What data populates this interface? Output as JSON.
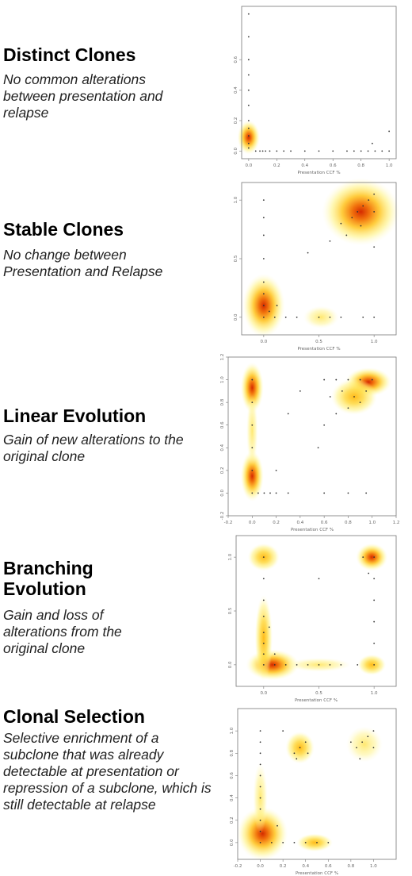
{
  "panels": [
    {
      "title": "Distinct Clones",
      "description": "No common alterations between presentation and relapse"
    },
    {
      "title": "Stable Clones",
      "description": "No change between Presentation and Relapse"
    },
    {
      "title": "Linear Evolution",
      "description": "Gain of new alterations to the original clone"
    },
    {
      "title": "Branching Evolution",
      "description": "Gain and loss of alterations from the original clone"
    },
    {
      "title": "Clonal Selection",
      "description": "Selective enrichment of a subclone that was already detectable at presentation or repression of a subclone, which is still detectable at relapse"
    }
  ],
  "chart_data": [
    {
      "type": "scatter",
      "xlabel": "Presentation CCF %",
      "ylabel": "",
      "xlim": [
        -0.05,
        1.05
      ],
      "ylim": [
        -0.05,
        0.95
      ],
      "xticks": [
        "0.0",
        "0.2",
        "0.4",
        "0.6",
        "0.8",
        "1.0"
      ],
      "xtick_values": [
        0.0,
        0.2,
        0.4,
        0.6,
        0.8,
        1.0
      ],
      "yticks": [
        "0.0",
        "0.2",
        "0.4",
        "0.6"
      ],
      "ytick_values": [
        0.0,
        0.2,
        0.4,
        0.6
      ],
      "density": [
        {
          "x": 0.0,
          "y": 0.09,
          "rx": 0.05,
          "ry": 0.07,
          "intensity": 1.0
        }
      ],
      "points": [
        [
          0.0,
          0.02
        ],
        [
          0.0,
          0.05
        ],
        [
          0.0,
          0.1
        ],
        [
          0.0,
          0.15
        ],
        [
          0.0,
          0.2
        ],
        [
          0.0,
          0.3
        ],
        [
          0.0,
          0.4
        ],
        [
          0.0,
          0.5
        ],
        [
          0.0,
          0.6
        ],
        [
          0.0,
          0.75
        ],
        [
          0.0,
          0.9
        ],
        [
          0.05,
          0.0
        ],
        [
          0.08,
          0.0
        ],
        [
          0.1,
          0.0
        ],
        [
          0.12,
          0.0
        ],
        [
          0.15,
          0.0
        ],
        [
          0.2,
          0.0
        ],
        [
          0.25,
          0.0
        ],
        [
          0.3,
          0.0
        ],
        [
          0.4,
          0.0
        ],
        [
          0.5,
          0.0
        ],
        [
          0.6,
          0.0
        ],
        [
          0.7,
          0.0
        ],
        [
          0.75,
          0.0
        ],
        [
          0.8,
          0.0
        ],
        [
          0.85,
          0.0
        ],
        [
          0.9,
          0.0
        ],
        [
          0.95,
          0.0
        ],
        [
          1.0,
          0.0
        ],
        [
          0.88,
          0.05
        ],
        [
          1.0,
          0.13
        ]
      ]
    },
    {
      "type": "scatter",
      "xlabel": "Presentation CCF %",
      "ylabel": "",
      "xlim": [
        -0.2,
        1.2
      ],
      "ylim": [
        -0.15,
        1.15
      ],
      "xticks": [
        "0.0",
        "0.5",
        "1.0"
      ],
      "xtick_values": [
        0.0,
        0.5,
        1.0
      ],
      "yticks": [
        "0.0",
        "0.5",
        "1.0"
      ],
      "ytick_values": [
        0.0,
        0.5,
        1.0
      ],
      "density": [
        {
          "x": 0.0,
          "y": 0.1,
          "rx": 0.12,
          "ry": 0.17,
          "intensity": 1.0
        },
        {
          "x": 0.88,
          "y": 0.9,
          "rx": 0.22,
          "ry": 0.18,
          "intensity": 0.95
        },
        {
          "x": 0.52,
          "y": 0.0,
          "rx": 0.1,
          "ry": 0.06,
          "intensity": 0.35
        }
      ],
      "points": [
        [
          0.0,
          0.0
        ],
        [
          0.0,
          0.1
        ],
        [
          0.0,
          0.2
        ],
        [
          0.0,
          0.3
        ],
        [
          0.0,
          0.5
        ],
        [
          0.0,
          0.7
        ],
        [
          0.0,
          0.85
        ],
        [
          0.0,
          1.0
        ],
        [
          0.05,
          0.05
        ],
        [
          0.1,
          0.0
        ],
        [
          0.2,
          0.0
        ],
        [
          0.3,
          0.0
        ],
        [
          0.5,
          0.0
        ],
        [
          0.6,
          0.0
        ],
        [
          0.7,
          0.0
        ],
        [
          0.9,
          0.0
        ],
        [
          1.0,
          0.0
        ],
        [
          0.7,
          0.8
        ],
        [
          0.8,
          0.85
        ],
        [
          0.85,
          0.9
        ],
        [
          0.9,
          0.95
        ],
        [
          0.95,
          1.0
        ],
        [
          1.0,
          0.9
        ],
        [
          0.75,
          0.7
        ],
        [
          0.88,
          0.78
        ],
        [
          1.0,
          1.05
        ],
        [
          0.6,
          0.65
        ],
        [
          1.0,
          0.6
        ],
        [
          0.4,
          0.55
        ],
        [
          0.12,
          0.1
        ]
      ]
    },
    {
      "type": "scatter",
      "xlabel": "Presentation CCF %",
      "ylabel": "",
      "xlim": [
        -0.2,
        1.2
      ],
      "ylim": [
        -0.2,
        1.2
      ],
      "xticks": [
        "-0.2",
        "0.0",
        "0.2",
        "0.4",
        "0.6",
        "0.8",
        "1.0",
        "1.2"
      ],
      "xtick_values": [
        -0.2,
        0.0,
        0.2,
        0.4,
        0.6,
        0.8,
        1.0,
        1.2
      ],
      "yticks": [
        "-0.2",
        "0.0",
        "0.2",
        "0.4",
        "0.6",
        "0.8",
        "1.0",
        "1.2"
      ],
      "ytick_values": [
        -0.2,
        0.0,
        0.2,
        0.4,
        0.6,
        0.8,
        1.0,
        1.2
      ],
      "density": [
        {
          "x": 0.0,
          "y": 0.93,
          "rx": 0.06,
          "ry": 0.14,
          "intensity": 1.0
        },
        {
          "x": 0.0,
          "y": 0.15,
          "rx": 0.06,
          "ry": 0.14,
          "intensity": 0.75
        },
        {
          "x": 0.0,
          "y": 0.55,
          "rx": 0.03,
          "ry": 0.2,
          "intensity": 0.3
        },
        {
          "x": 0.97,
          "y": 0.98,
          "rx": 0.12,
          "ry": 0.08,
          "intensity": 1.0
        },
        {
          "x": 0.85,
          "y": 0.85,
          "rx": 0.12,
          "ry": 0.1,
          "intensity": 0.45
        }
      ],
      "points": [
        [
          0.0,
          0.0
        ],
        [
          0.0,
          0.2
        ],
        [
          0.0,
          0.4
        ],
        [
          0.0,
          0.6
        ],
        [
          0.0,
          0.8
        ],
        [
          0.0,
          1.0
        ],
        [
          0.05,
          0.0
        ],
        [
          0.1,
          0.0
        ],
        [
          0.15,
          0.0
        ],
        [
          0.2,
          0.0
        ],
        [
          0.3,
          0.0
        ],
        [
          0.6,
          0.0
        ],
        [
          0.8,
          0.0
        ],
        [
          0.95,
          0.0
        ],
        [
          0.2,
          0.2
        ],
        [
          0.6,
          1.0
        ],
        [
          0.7,
          1.0
        ],
        [
          0.8,
          1.0
        ],
        [
          0.9,
          1.0
        ],
        [
          1.0,
          1.0
        ],
        [
          0.75,
          0.9
        ],
        [
          0.85,
          0.85
        ],
        [
          0.9,
          0.8
        ],
        [
          0.95,
          0.9
        ],
        [
          0.8,
          0.75
        ],
        [
          0.65,
          0.85
        ],
        [
          0.7,
          0.7
        ],
        [
          0.6,
          0.6
        ],
        [
          0.55,
          0.4
        ],
        [
          0.3,
          0.7
        ],
        [
          0.4,
          0.9
        ]
      ]
    },
    {
      "type": "scatter",
      "xlabel": "Presentation CCF %",
      "ylabel": "",
      "xlim": [
        -0.25,
        1.2
      ],
      "ylim": [
        -0.2,
        1.2
      ],
      "xticks": [
        "0.0",
        "0.5",
        "1.0"
      ],
      "xtick_values": [
        0.0,
        0.5,
        1.0
      ],
      "yticks": [
        "0.0",
        "0.5",
        "1.0"
      ],
      "ytick_values": [
        0.0,
        0.5,
        1.0
      ],
      "density": [
        {
          "x": 0.0,
          "y": 1.0,
          "rx": 0.09,
          "ry": 0.08,
          "intensity": 0.55
        },
        {
          "x": 0.98,
          "y": 1.0,
          "rx": 0.09,
          "ry": 0.08,
          "intensity": 1.0
        },
        {
          "x": 0.08,
          "y": 0.0,
          "rx": 0.15,
          "ry": 0.09,
          "intensity": 1.0
        },
        {
          "x": 0.0,
          "y": 0.25,
          "rx": 0.05,
          "ry": 0.25,
          "intensity": 0.4
        },
        {
          "x": 0.98,
          "y": 0.0,
          "rx": 0.08,
          "ry": 0.06,
          "intensity": 0.6
        },
        {
          "x": 0.5,
          "y": 0.0,
          "rx": 0.18,
          "ry": 0.04,
          "intensity": 0.2
        }
      ],
      "points": [
        [
          0.0,
          0.0
        ],
        [
          0.0,
          0.1
        ],
        [
          0.0,
          0.2
        ],
        [
          0.0,
          0.3
        ],
        [
          0.0,
          0.45
        ],
        [
          0.0,
          0.6
        ],
        [
          0.0,
          0.8
        ],
        [
          0.0,
          1.0
        ],
        [
          0.1,
          0.0
        ],
        [
          0.2,
          0.0
        ],
        [
          0.3,
          0.0
        ],
        [
          0.4,
          0.0
        ],
        [
          0.5,
          0.0
        ],
        [
          0.6,
          0.0
        ],
        [
          0.7,
          0.0
        ],
        [
          0.85,
          0.0
        ],
        [
          1.0,
          0.0
        ],
        [
          1.0,
          0.2
        ],
        [
          1.0,
          0.4
        ],
        [
          1.0,
          0.6
        ],
        [
          1.0,
          0.8
        ],
        [
          0.9,
          1.0
        ],
        [
          1.0,
          1.0
        ],
        [
          0.95,
          0.85
        ],
        [
          0.5,
          0.8
        ],
        [
          0.1,
          0.1
        ],
        [
          0.05,
          0.35
        ]
      ]
    },
    {
      "type": "scatter",
      "xlabel": "Presentation CCF %",
      "ylabel": "",
      "xlim": [
        -0.2,
        1.2
      ],
      "ylim": [
        -0.15,
        1.2
      ],
      "xticks": [
        "-0.2",
        "0.0",
        "0.2",
        "0.4",
        "0.6",
        "0.8",
        "1.0"
      ],
      "xtick_values": [
        -0.2,
        0.0,
        0.2,
        0.4,
        0.6,
        0.8,
        1.0
      ],
      "yticks": [
        "0.0",
        "0.2",
        "0.4",
        "0.6",
        "0.8",
        "1.0"
      ],
      "ytick_values": [
        0.0,
        0.2,
        0.4,
        0.6,
        0.8,
        1.0
      ],
      "density": [
        {
          "x": 0.02,
          "y": 0.08,
          "rx": 0.14,
          "ry": 0.15,
          "intensity": 1.0
        },
        {
          "x": 0.48,
          "y": 0.0,
          "rx": 0.1,
          "ry": 0.05,
          "intensity": 0.45
        },
        {
          "x": 0.35,
          "y": 0.85,
          "rx": 0.08,
          "ry": 0.09,
          "intensity": 0.4
        },
        {
          "x": 0.92,
          "y": 0.88,
          "rx": 0.1,
          "ry": 0.1,
          "intensity": 0.35
        },
        {
          "x": 0.0,
          "y": 0.4,
          "rx": 0.04,
          "ry": 0.2,
          "intensity": 0.25
        }
      ],
      "points": [
        [
          0.0,
          0.0
        ],
        [
          0.0,
          0.1
        ],
        [
          0.0,
          0.2
        ],
        [
          0.0,
          0.3
        ],
        [
          0.0,
          0.4
        ],
        [
          0.0,
          0.5
        ],
        [
          0.0,
          0.6
        ],
        [
          0.0,
          0.7
        ],
        [
          0.0,
          0.8
        ],
        [
          0.0,
          0.9
        ],
        [
          0.0,
          1.0
        ],
        [
          0.1,
          0.0
        ],
        [
          0.2,
          0.0
        ],
        [
          0.3,
          0.0
        ],
        [
          0.4,
          0.0
        ],
        [
          0.5,
          0.0
        ],
        [
          0.6,
          0.0
        ],
        [
          0.3,
          0.8
        ],
        [
          0.35,
          0.85
        ],
        [
          0.4,
          0.9
        ],
        [
          0.32,
          0.75
        ],
        [
          0.42,
          0.8
        ],
        [
          0.85,
          0.85
        ],
        [
          0.9,
          0.9
        ],
        [
          0.95,
          0.95
        ],
        [
          1.0,
          0.85
        ],
        [
          0.88,
          0.75
        ],
        [
          0.8,
          0.9
        ],
        [
          1.0,
          1.0
        ],
        [
          0.2,
          1.0
        ],
        [
          0.15,
          0.15
        ]
      ]
    }
  ]
}
